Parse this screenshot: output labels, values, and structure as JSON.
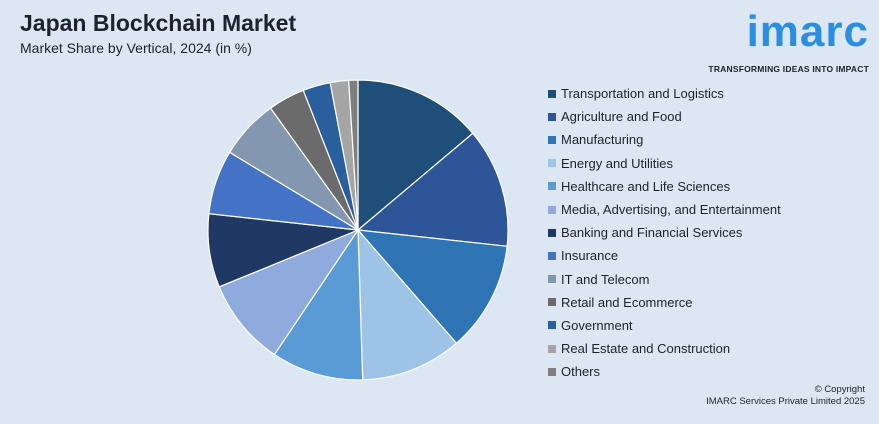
{
  "header": {
    "title": "Japan Blockchain Market",
    "subtitle": "Market Share by Vertical, 2024 (in %)"
  },
  "logo": {
    "word": "imarc",
    "tagline": "TRANSFORMING IDEAS INTO IMPACT"
  },
  "footer": {
    "copyright_line1": "© Copyright",
    "copyright_line2": "IMARC Services Private Limited 2025"
  },
  "chart_data": {
    "type": "pie",
    "title": "",
    "legend_position": "right",
    "start_angle_deg": 0,
    "direction": "clockwise",
    "slices": [
      {
        "label": "Transportation and Logistics",
        "value": 14.0,
        "color": "#1f4e79"
      },
      {
        "label": "Agriculture and Food",
        "value": 13.0,
        "color": "#2e5597"
      },
      {
        "label": "Manufacturing",
        "value": 12.0,
        "color": "#2f75b5"
      },
      {
        "label": "Energy and Utilities",
        "value": 11.0,
        "color": "#9dc3e6"
      },
      {
        "label": "Healthcare and Life Sciences",
        "value": 10.0,
        "color": "#5b9bd5"
      },
      {
        "label": "Media, Advertising, and Entertainment",
        "value": 9.5,
        "color": "#8faadc"
      },
      {
        "label": "Banking and Financial Services",
        "value": 8.0,
        "color": "#203864"
      },
      {
        "label": "Insurance",
        "value": 7.0,
        "color": "#4472c4"
      },
      {
        "label": "IT and Telecom",
        "value": 6.5,
        "color": "#8497b0"
      },
      {
        "label": "Retail and Ecommerce",
        "value": 4.0,
        "color": "#6b6b6b"
      },
      {
        "label": "Government",
        "value": 3.0,
        "color": "#2a5f9e"
      },
      {
        "label": "Real Estate and Construction",
        "value": 2.0,
        "color": "#a5a5a5"
      },
      {
        "label": "Others",
        "value": 1.0,
        "color": "#7f7f7f"
      }
    ]
  }
}
